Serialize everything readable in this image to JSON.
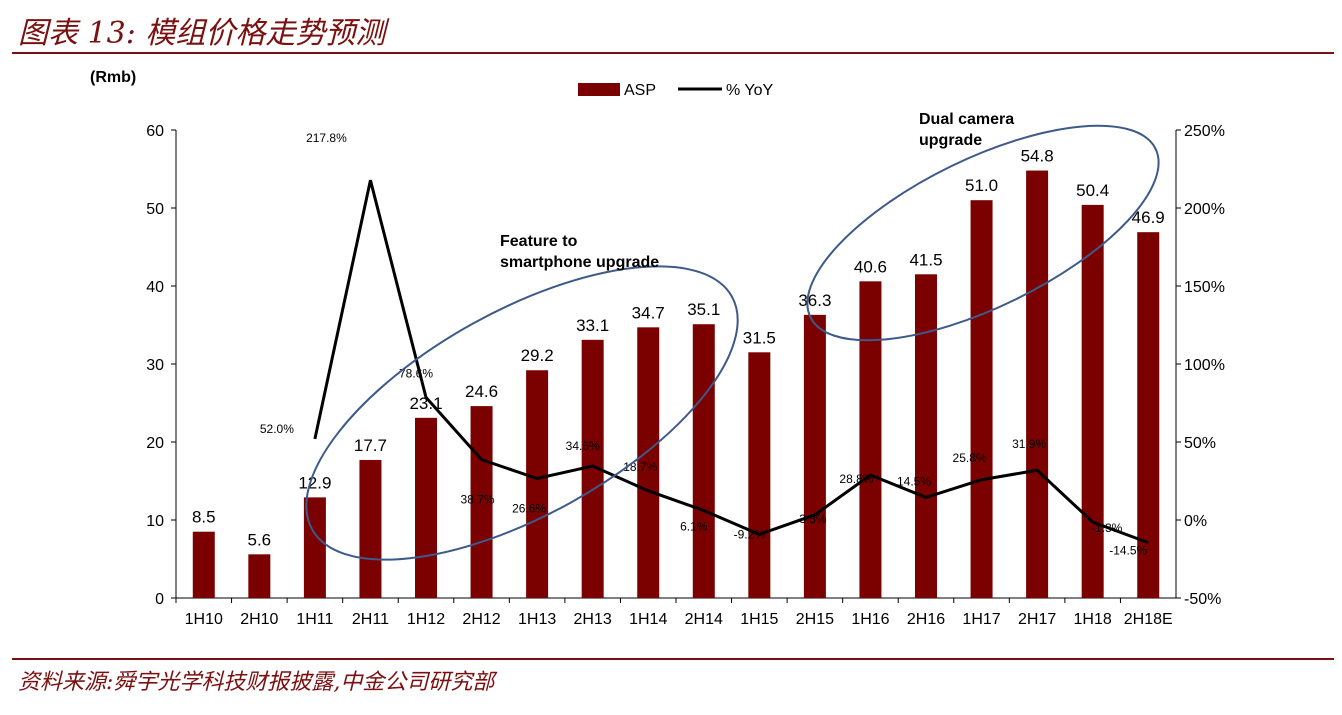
{
  "header": {
    "title": "图表 13: 模组价格走势预测"
  },
  "footer": {
    "source": "资料来源:舜宇光学科技财报披露,中金公司研究部"
  },
  "chart_data": {
    "type": "bar",
    "categories": [
      "1H10",
      "2H10",
      "1H11",
      "2H11",
      "1H12",
      "2H12",
      "1H13",
      "2H13",
      "1H14",
      "2H14",
      "1H15",
      "2H15",
      "1H16",
      "2H16",
      "1H17",
      "2H17",
      "1H18",
      "2H18E"
    ],
    "series": [
      {
        "name": "ASP",
        "type": "bar",
        "axis": "left",
        "color": "#7b0000",
        "values": [
          8.5,
          5.6,
          12.9,
          17.7,
          23.1,
          24.6,
          29.2,
          33.1,
          34.7,
          35.1,
          31.5,
          36.3,
          40.6,
          41.5,
          51.0,
          54.8,
          50.4,
          46.9
        ],
        "labels": [
          "8.5",
          "5.6",
          "12.9",
          "17.7",
          "23.1",
          "24.6",
          "29.2",
          "33.1",
          "34.7",
          "35.1",
          "31.5",
          "36.3",
          "40.6",
          "41.5",
          "51.0",
          "54.8",
          "50.4",
          "46.9"
        ]
      },
      {
        "name": "% YoY",
        "type": "line",
        "axis": "right",
        "color": "#000000",
        "values": [
          null,
          null,
          52.0,
          217.8,
          78.6,
          38.7,
          26.6,
          34.6,
          18.7,
          6.1,
          -9.2,
          3.3,
          28.8,
          14.5,
          25.8,
          31.9,
          -1.3,
          -14.5
        ],
        "labels": [
          null,
          null,
          "52.0%",
          "217.8%",
          "78.6%",
          "38.7%",
          "26.6%",
          "34.6%",
          "18.7%",
          "6.1%",
          "-9.2%",
          "3.3%",
          "28.8%",
          "14.5%",
          "25.8%",
          "31.9%",
          "-1.3%",
          "-14.5%"
        ]
      }
    ],
    "y_left": {
      "unit_label": "(Rmb)",
      "min": 0,
      "max": 60,
      "ticks": [
        "0",
        "10",
        "20",
        "30",
        "40",
        "50",
        "60"
      ]
    },
    "y_right": {
      "min": -50,
      "max": 250,
      "ticks": [
        "-50%",
        "0%",
        "50%",
        "100%",
        "150%",
        "200%",
        "250%"
      ]
    },
    "legend": {
      "position": "top-center",
      "items": [
        "ASP",
        "% YoY"
      ]
    },
    "annotations": [
      {
        "text_lines": [
          "Feature to",
          "smartphone upgrade"
        ]
      },
      {
        "text_lines": [
          "Dual camera",
          "upgrade"
        ]
      }
    ],
    "grid": false,
    "colors": {
      "bar": "#7b0000",
      "line": "#000000",
      "ellipse": "#3d5a8a",
      "accent": "#7b1010"
    }
  }
}
